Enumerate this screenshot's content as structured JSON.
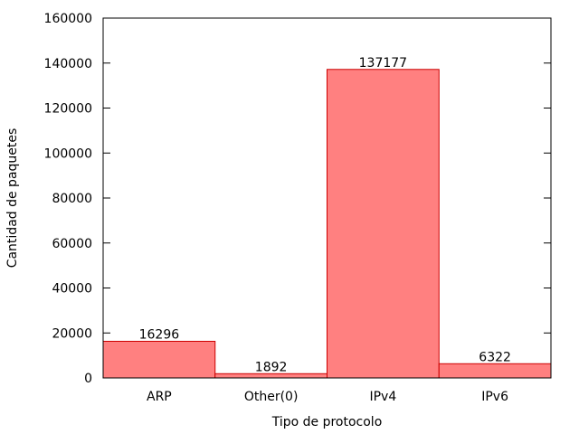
{
  "chart_data": {
    "type": "bar",
    "title": "",
    "xlabel": "Tipo de protocolo",
    "ylabel": "Cantidad de paquetes",
    "categories": [
      "ARP",
      "Other(0)",
      "IPv4",
      "IPv6"
    ],
    "values": [
      16296,
      1892,
      137177,
      6322
    ],
    "data_labels": [
      "16296",
      "1892",
      "137177",
      "6322"
    ],
    "ylim": [
      0,
      160000
    ],
    "yticks": [
      0,
      20000,
      40000,
      60000,
      80000,
      100000,
      120000,
      140000,
      160000
    ],
    "ytick_labels": [
      "0",
      "20000",
      "40000",
      "60000",
      "80000",
      "100000",
      "120000",
      "140000",
      "160000"
    ],
    "grid": false,
    "legend": "none",
    "colors": {
      "bar_fill": "#ff8080",
      "bar_stroke": "#cc0000",
      "axis": "#000000"
    }
  }
}
